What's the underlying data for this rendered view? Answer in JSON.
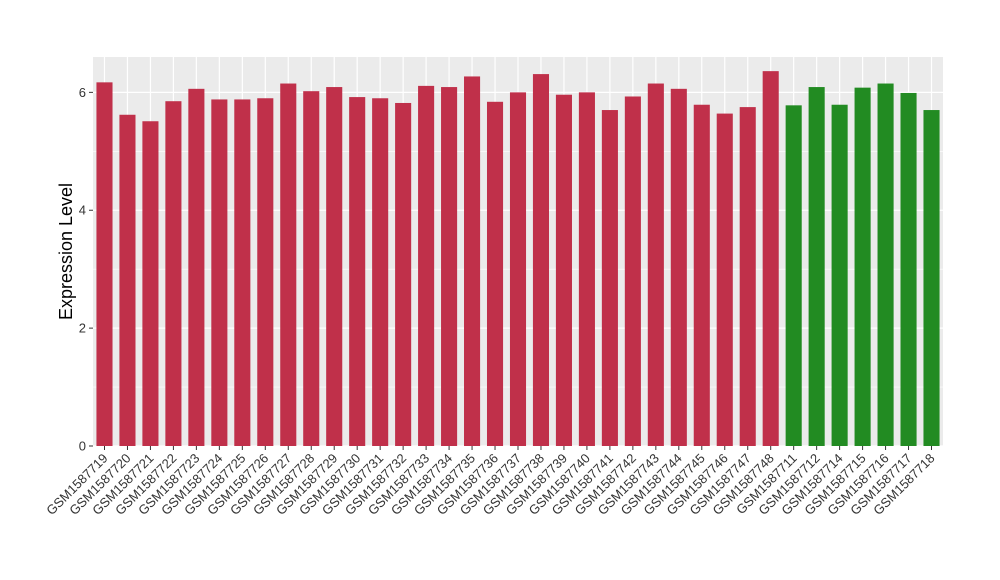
{
  "chart_data": {
    "type": "bar",
    "ylabel": "Expression Level",
    "xlabel": "",
    "ylim": [
      0,
      6.6
    ],
    "yticks": [
      0,
      2,
      4,
      6
    ],
    "grid": true,
    "panel_background": "#ebebeb",
    "colors": {
      "group_a": "#c0304a",
      "group_b": "#228b22"
    },
    "categories": [
      "GSM1587719",
      "GSM1587720",
      "GSM1587721",
      "GSM1587722",
      "GSM1587723",
      "GSM1587724",
      "GSM1587725",
      "GSM1587726",
      "GSM1587727",
      "GSM1587728",
      "GSM1587729",
      "GSM1587730",
      "GSM1587731",
      "GSM1587732",
      "GSM1587733",
      "GSM1587734",
      "GSM1587735",
      "GSM1587736",
      "GSM1587737",
      "GSM1587738",
      "GSM1587739",
      "GSM1587740",
      "GSM1587741",
      "GSM1587742",
      "GSM1587743",
      "GSM1587744",
      "GSM1587745",
      "GSM1587746",
      "GSM1587747",
      "GSM1587748",
      "GSM1587711",
      "GSM1587712",
      "GSM1587714",
      "GSM1587715",
      "GSM1587716",
      "GSM1587717",
      "GSM1587718"
    ],
    "values": [
      6.17,
      5.62,
      5.51,
      5.85,
      6.06,
      5.88,
      5.88,
      5.9,
      6.15,
      6.02,
      6.09,
      5.92,
      5.9,
      5.82,
      6.11,
      6.09,
      6.27,
      5.84,
      6.0,
      6.31,
      5.96,
      6.0,
      5.7,
      5.93,
      6.15,
      6.06,
      5.79,
      5.64,
      5.75,
      6.36,
      5.78,
      6.09,
      5.79,
      6.08,
      6.15,
      5.99,
      5.7
    ],
    "groups": [
      "a",
      "a",
      "a",
      "a",
      "a",
      "a",
      "a",
      "a",
      "a",
      "a",
      "a",
      "a",
      "a",
      "a",
      "a",
      "a",
      "a",
      "a",
      "a",
      "a",
      "a",
      "a",
      "a",
      "a",
      "a",
      "a",
      "a",
      "a",
      "a",
      "a",
      "b",
      "b",
      "b",
      "b",
      "b",
      "b",
      "b"
    ]
  }
}
